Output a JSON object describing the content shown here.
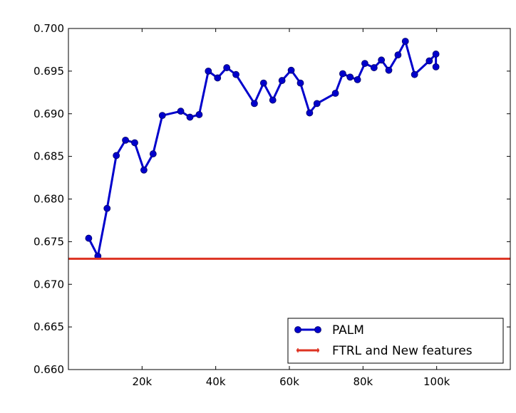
{
  "chart_data": {
    "type": "line",
    "title": "",
    "xlabel": "",
    "ylabel": "",
    "xlim": [
      0,
      120000
    ],
    "ylim": [
      0.66,
      0.7
    ],
    "xticks": [
      20000,
      40000,
      60000,
      80000,
      100000
    ],
    "xtick_labels": [
      "20k",
      "40k",
      "60k",
      "80k",
      "100k"
    ],
    "yticks": [
      0.66,
      0.665,
      0.67,
      0.675,
      0.68,
      0.685,
      0.69,
      0.695,
      0.7
    ],
    "ytick_labels": [
      "0.660",
      "0.665",
      "0.670",
      "0.675",
      "0.680",
      "0.685",
      "0.690",
      "0.695",
      "0.700"
    ],
    "grid": false,
    "legend_position": "lower-right",
    "series": [
      {
        "name": "PALM",
        "color": "#0000cc",
        "marker": "circle",
        "x": [
          5500,
          8000,
          10500,
          13000,
          15500,
          18000,
          20500,
          23000,
          25500,
          30500,
          33000,
          35500,
          38000,
          40500,
          43000,
          45500,
          50500,
          53000,
          55500,
          58000,
          60500,
          63000,
          65500,
          67500,
          72500,
          74500,
          76500,
          78500,
          80500,
          83000,
          85000,
          87000,
          89500,
          91500,
          94000,
          98000,
          99800,
          99800
        ],
        "y": [
          0.6754,
          0.6733,
          0.6789,
          0.6851,
          0.6869,
          0.6866,
          0.6834,
          0.6853,
          0.6898,
          0.6903,
          0.6896,
          0.6899,
          0.695,
          0.6942,
          0.6954,
          0.6946,
          0.6912,
          0.6936,
          0.6916,
          0.6939,
          0.6951,
          0.6936,
          0.6901,
          0.6912,
          0.6924,
          0.6947,
          0.6943,
          0.694,
          0.6959,
          0.6954,
          0.6963,
          0.6951,
          0.6969,
          0.6985,
          0.6946,
          0.6962,
          0.697,
          0.6955
        ]
      },
      {
        "name": "FTRL and New features",
        "color": "#dd3322",
        "marker": "plus",
        "x": [
          0,
          120000
        ],
        "y": [
          0.673,
          0.673
        ]
      }
    ]
  }
}
